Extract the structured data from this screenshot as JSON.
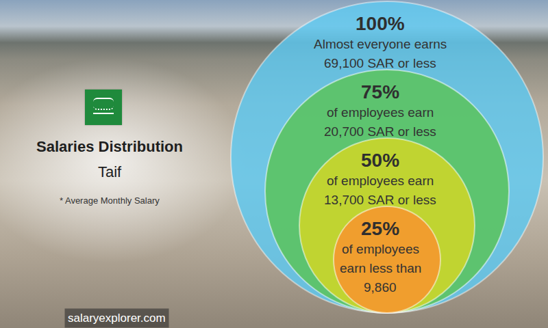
{
  "chart_data": {
    "type": "nested_circles",
    "title": "Salaries Distribution",
    "subtitle": "Taif",
    "note": "* Average Monthly Salary",
    "source": "salaryexplorer.com",
    "levels": [
      {
        "value": 100,
        "label": "100%",
        "text": [
          "Almost everyone earns",
          "69,100 SAR or less"
        ]
      },
      {
        "value": 75,
        "label": "75%",
        "text": [
          "of employees earn",
          "20,700 SAR or less"
        ]
      },
      {
        "value": 50,
        "label": "50%",
        "text": [
          "of employees earn",
          "13,700 SAR or less"
        ]
      },
      {
        "value": 25,
        "label": "25%",
        "text": [
          "of employees",
          "earn less than",
          "9,860"
        ]
      }
    ],
    "colors": [
      "#5ec9f1",
      "#5cc466",
      "#c9d62c",
      "#f59a2e"
    ]
  }
}
